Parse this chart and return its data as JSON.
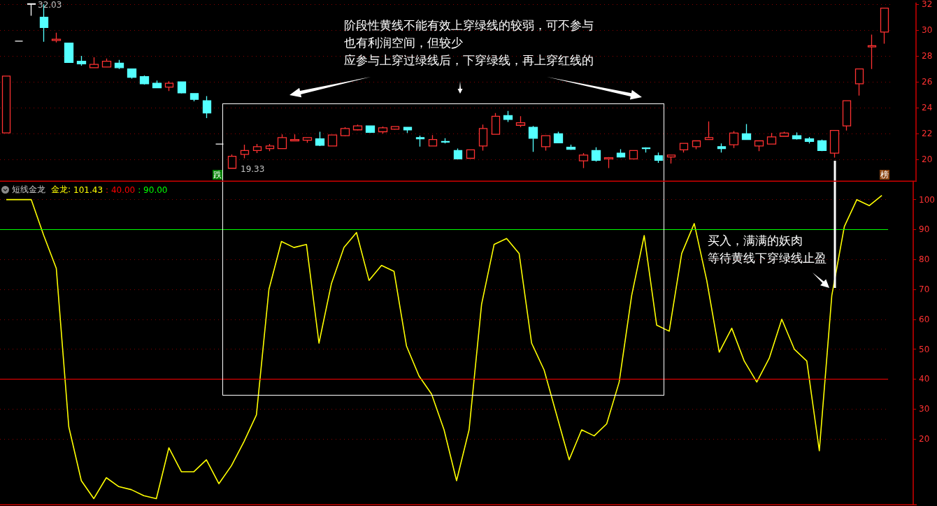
{
  "chart_data": [
    {
      "type": "candlestick",
      "categories": [
        null,
        null,
        null,
        null,
        null,
        null,
        null,
        null,
        null,
        null,
        null,
        null,
        null,
        null,
        null,
        null,
        null,
        null,
        null,
        null,
        null,
        null,
        null,
        null,
        null,
        null,
        null,
        null,
        null,
        null,
        null,
        null,
        null,
        null,
        null,
        null,
        null,
        null,
        null,
        null,
        null,
        null,
        null,
        null,
        null,
        null,
        null,
        null,
        null,
        null,
        null,
        null,
        null,
        null,
        null,
        null,
        null,
        null,
        null,
        null,
        null,
        null,
        null,
        null,
        null,
        null,
        null,
        null,
        null,
        null,
        null
      ],
      "ohlc": [
        [
          22.06,
          26.45,
          22.06,
          26.45
        ],
        [
          29.15,
          29.15,
          29.15,
          29.15
        ],
        [
          32.0,
          32.03,
          31.11,
          32.03
        ],
        [
          31.0,
          32.0,
          29.1,
          30.2
        ],
        [
          29.2,
          29.8,
          29.05,
          29.3
        ],
        [
          29.0,
          29.0,
          27.5,
          27.5
        ],
        [
          27.6,
          28.0,
          27.25,
          27.4
        ],
        [
          27.1,
          27.9,
          27.1,
          27.35
        ],
        [
          27.15,
          27.8,
          27.15,
          27.6
        ],
        [
          27.45,
          27.7,
          27.0,
          27.1
        ],
        [
          27.0,
          27.0,
          26.25,
          26.35
        ],
        [
          26.4,
          26.5,
          25.8,
          25.85
        ],
        [
          25.9,
          26.1,
          25.55,
          25.55
        ],
        [
          25.6,
          26.05,
          25.3,
          25.9
        ],
        [
          26.0,
          26.0,
          25.1,
          25.15
        ],
        [
          25.1,
          25.1,
          24.5,
          24.65
        ],
        [
          24.55,
          24.9,
          23.2,
          23.6
        ],
        [
          21.2,
          21.2,
          21.2,
          21.2
        ],
        [
          19.33,
          20.4,
          19.33,
          20.25
        ],
        [
          20.4,
          21.15,
          20.1,
          20.7
        ],
        [
          20.7,
          21.2,
          20.5,
          21.0
        ],
        [
          20.85,
          21.2,
          20.65,
          21.05
        ],
        [
          20.85,
          21.95,
          20.85,
          21.7
        ],
        [
          21.45,
          21.95,
          21.45,
          21.55
        ],
        [
          21.5,
          21.7,
          21.3,
          21.7
        ],
        [
          21.6,
          22.15,
          21.05,
          21.1
        ],
        [
          21.05,
          21.9,
          21.05,
          21.9
        ],
        [
          21.85,
          22.5,
          21.8,
          22.4
        ],
        [
          22.3,
          22.7,
          22.25,
          22.6
        ],
        [
          22.6,
          22.6,
          22.05,
          22.1
        ],
        [
          22.15,
          22.55,
          22.0,
          22.45
        ],
        [
          22.35,
          22.55,
          22.3,
          22.55
        ],
        [
          22.5,
          22.5,
          22.05,
          22.3
        ],
        [
          21.7,
          21.85,
          21.0,
          21.6
        ],
        [
          21.05,
          21.9,
          21.05,
          21.55
        ],
        [
          21.4,
          21.65,
          21.25,
          21.35
        ],
        [
          20.7,
          20.85,
          20.05,
          20.05
        ],
        [
          20.1,
          20.75,
          20.1,
          20.75
        ],
        [
          21.05,
          22.7,
          20.7,
          22.4
        ],
        [
          21.95,
          23.6,
          21.95,
          23.35
        ],
        [
          23.4,
          23.75,
          22.9,
          23.1
        ],
        [
          22.65,
          23.35,
          22.5,
          22.85
        ],
        [
          22.5,
          22.6,
          20.6,
          21.65
        ],
        [
          21.0,
          21.85,
          20.7,
          21.85
        ],
        [
          22.0,
          22.15,
          21.3,
          21.3
        ],
        [
          20.95,
          21.15,
          20.75,
          20.8
        ],
        [
          19.9,
          20.5,
          19.35,
          20.35
        ],
        [
          20.7,
          20.95,
          19.85,
          19.95
        ],
        [
          20.05,
          20.2,
          19.35,
          20.15
        ],
        [
          20.5,
          20.8,
          20.15,
          20.2
        ],
        [
          20.05,
          20.7,
          20.05,
          20.7
        ],
        [
          20.9,
          20.95,
          20.55,
          20.85
        ],
        [
          20.3,
          20.55,
          19.75,
          19.95
        ],
        [
          20.2,
          20.35,
          19.7,
          20.35
        ],
        [
          20.75,
          21.25,
          20.55,
          21.25
        ],
        [
          21.0,
          21.45,
          20.8,
          21.45
        ],
        [
          21.55,
          22.95,
          21.55,
          21.7
        ],
        [
          21.0,
          21.25,
          20.55,
          20.85
        ],
        [
          21.15,
          22.2,
          20.9,
          22.05
        ],
        [
          22.0,
          22.75,
          21.55,
          21.55
        ],
        [
          21.05,
          21.45,
          20.65,
          21.45
        ],
        [
          21.2,
          22.05,
          21.2,
          21.75
        ],
        [
          21.8,
          22.15,
          21.8,
          22.05
        ],
        [
          21.85,
          22.1,
          21.55,
          21.6
        ],
        [
          21.6,
          21.75,
          21.25,
          21.4
        ],
        [
          21.45,
          21.55,
          20.65,
          20.7
        ],
        [
          20.5,
          22.25,
          20.15,
          22.25
        ],
        [
          22.6,
          24.55,
          22.25,
          24.55
        ],
        [
          25.85,
          27.0,
          24.95,
          27.0
        ],
        [
          28.7,
          29.65,
          27.0,
          28.8
        ],
        [
          29.85,
          31.7,
          28.95,
          31.7
        ]
      ],
      "colors": [
        "#ff3232",
        "#ffffff",
        "#ffffff",
        "#54ffff",
        "#ff3232",
        "#54ffff",
        "#54ffff",
        "#ff3232",
        "#ff3232",
        "#54ffff",
        "#54ffff",
        "#54ffff",
        "#54ffff",
        "#ff3232",
        "#54ffff",
        "#54ffff",
        "#54ffff",
        "#ffffff",
        "#ff3232",
        "#ff3232",
        "#ff3232",
        "#ff3232",
        "#ff3232",
        "#ff3232",
        "#ff3232",
        "#54ffff",
        "#ff3232",
        "#ff3232",
        "#ff3232",
        "#54ffff",
        "#ff3232",
        "#ff3232",
        "#54ffff",
        "#54ffff",
        "#ff3232",
        "#54ffff",
        "#54ffff",
        "#ff3232",
        "#ff3232",
        "#ff3232",
        "#54ffff",
        "#ff3232",
        "#54ffff",
        "#ff3232",
        "#54ffff",
        "#54ffff",
        "#ff3232",
        "#54ffff",
        "#ff3232",
        "#54ffff",
        "#ff3232",
        "#54ffff",
        "#54ffff",
        "#ff3232",
        "#ff3232",
        "#ff3232",
        "#ff3232",
        "#54ffff",
        "#ff3232",
        "#54ffff",
        "#ff3232",
        "#ff3232",
        "#ff3232",
        "#54ffff",
        "#54ffff",
        "#54ffff",
        "#ff3232",
        "#ff3232",
        "#ff3232",
        "#ff3232",
        "#ff3232"
      ],
      "ylim": [
        18.4,
        32.1
      ],
      "yticks": [
        20,
        22,
        24,
        26,
        28,
        30,
        32
      ],
      "grid": "y",
      "tick_labels": "y",
      "annotations": [
        "阶段性黄线不能有效上穿绿线的较弱，可不参与也有利润空间，但较少应参与上穿过绿线后，下穿绿线，再上穿红线的",
        "32.03",
        "19.33",
        "跌",
        "榜"
      ]
    },
    {
      "type": "line",
      "title": "短线金龙",
      "categories": [
        null,
        null,
        null,
        null,
        null,
        null,
        null,
        null,
        null,
        null,
        null,
        null,
        null,
        null,
        null,
        null,
        null,
        null,
        null,
        null,
        null,
        null,
        null,
        null,
        null,
        null,
        null,
        null,
        null,
        null,
        null,
        null,
        null,
        null,
        null,
        null,
        null,
        null,
        null,
        null,
        null,
        null,
        null,
        null,
        null,
        null,
        null,
        null,
        null,
        null,
        null,
        null,
        null,
        null,
        null,
        null,
        null,
        null,
        null,
        null,
        null,
        null,
        null,
        null,
        null,
        null,
        null,
        null,
        null,
        null,
        null
      ],
      "series": [
        {
          "name": "金龙:",
          "color": "#ffff00",
          "values": [
            100,
            100,
            100,
            88,
            77,
            24,
            6,
            0,
            7,
            4,
            3,
            1,
            0,
            17,
            9,
            9,
            13,
            5,
            11,
            19,
            28,
            70,
            86,
            84,
            85,
            52,
            72,
            84,
            89,
            73,
            78,
            76,
            51,
            41,
            35,
            23,
            6,
            23,
            65,
            85,
            87,
            82,
            52,
            43,
            28,
            13,
            23,
            21,
            25,
            39,
            68,
            88,
            58,
            56,
            82,
            92,
            73,
            49,
            57,
            46,
            39,
            47,
            60,
            50,
            46,
            16,
            68,
            91,
            100,
            98,
            101.43
          ]
        }
      ],
      "ref_lines": [
        {
          "axis": "y",
          "value": 40,
          "label": ": 40.00",
          "color": "#ff0000"
        },
        {
          "axis": "y",
          "value": 90,
          "label": ": 90.00",
          "color": "#00ff00"
        }
      ],
      "ylim": [
        -2,
        106
      ],
      "yticks": [
        20,
        30,
        40,
        50,
        60,
        70,
        80,
        90,
        100
      ],
      "grid": "y",
      "tick_labels": "y",
      "marker": "none",
      "annotations": [
        "101.43",
        "买入，满满的妖肉等待黄线下穿绿线止盈"
      ]
    }
  ]
}
